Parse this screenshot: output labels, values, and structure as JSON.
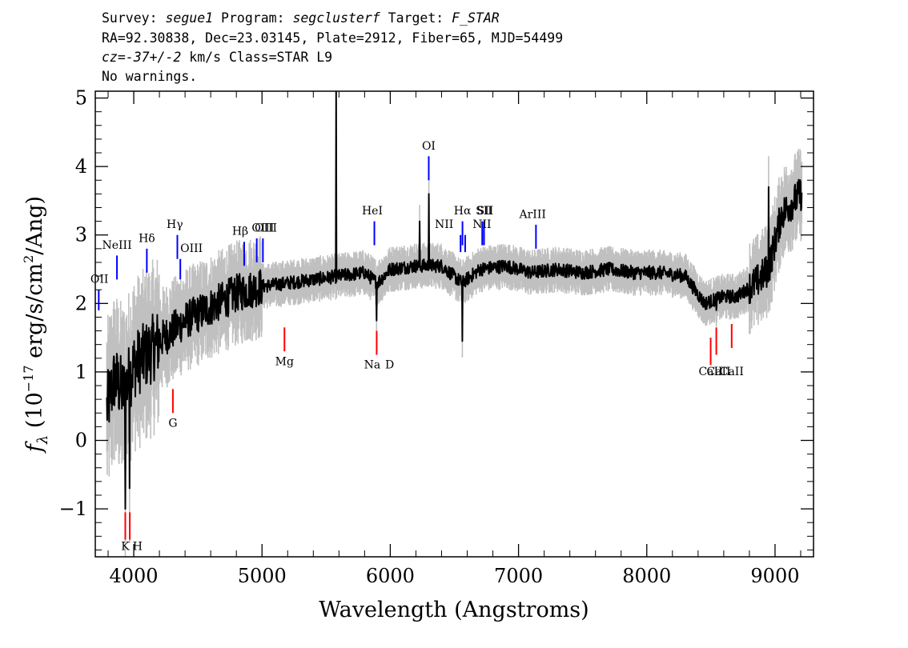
{
  "header": {
    "survey_label": "Survey: ",
    "survey_value": "segue1",
    "program_label": " Program: ",
    "program_value": "segclusterf",
    "target_label": " Target: ",
    "target_value": "F_STAR",
    "line2": "RA=92.30838, Dec=23.03145, Plate=2912, Fiber=65, MJD=54499",
    "line3_cz": "cz=-37+/-2",
    "line3_rest": " km/s Class=STAR L9",
    "line4": "No warnings."
  },
  "chart_data": {
    "type": "line",
    "title": "",
    "xlabel": "Wavelength (Angstroms)",
    "ylabel_prefix": "f",
    "ylabel_sub": "λ",
    "ylabel_open": " (10",
    "ylabel_exp": "−17",
    "ylabel_unit": " erg/s/cm",
    "ylabel_sq": "2",
    "ylabel_end": "/Ang)",
    "xlim": [
      3700,
      9300
    ],
    "ylim": [
      -1.7,
      5.1
    ],
    "xticks": [
      4000,
      5000,
      6000,
      7000,
      8000,
      9000
    ],
    "xtick_labels": [
      "4000",
      "5000",
      "6000",
      "7000",
      "8000",
      "9000"
    ],
    "yticks": [
      -1,
      0,
      1,
      2,
      3,
      4,
      5
    ],
    "ytick_labels": [
      "−1",
      "0",
      "1",
      "2",
      "3",
      "4",
      "5"
    ],
    "flux_color": "#000000",
    "error_color": "#c0c0c0",
    "spectrum_anchors": {
      "x": [
        3780,
        3850,
        3920,
        4000,
        4100,
        4200,
        4300,
        4400,
        4500,
        4600,
        4700,
        4800,
        4900,
        5000,
        5200,
        5400,
        5600,
        5800,
        5900,
        6000,
        6200,
        6400,
        6560,
        6700,
        6900,
        7100,
        7300,
        7500,
        7700,
        7900,
        8100,
        8300,
        8450,
        8600,
        8700,
        8850,
        8950,
        9050,
        9200
      ],
      "y": [
        0.4,
        0.9,
        0.7,
        1.1,
        1.25,
        1.45,
        1.6,
        1.75,
        1.85,
        1.95,
        2.05,
        2.15,
        2.2,
        2.25,
        2.3,
        2.35,
        2.4,
        2.45,
        2.3,
        2.5,
        2.55,
        2.55,
        2.3,
        2.5,
        2.55,
        2.45,
        2.5,
        2.45,
        2.5,
        2.45,
        2.45,
        2.4,
        2.0,
        2.1,
        2.1,
        2.3,
        2.5,
        3.3,
        3.6
      ]
    },
    "spikes": [
      {
        "x": 5577,
        "y": 5.1
      },
      {
        "x": 6300,
        "y": 3.6
      },
      {
        "x": 6230,
        "y": 3.2
      },
      {
        "x": 6563,
        "y": 1.45
      },
      {
        "x": 3933,
        "y": -1.0
      },
      {
        "x": 3968,
        "y": -0.7
      },
      {
        "x": 5893,
        "y": 1.75
      },
      {
        "x": 8542,
        "y": 1.9
      },
      {
        "x": 8950,
        "y": 3.7
      }
    ],
    "emission_lines": [
      {
        "label": "OII",
        "x": 3727,
        "y1": 1.9,
        "y2": 2.2,
        "lx": 3732,
        "ly": 2.3
      },
      {
        "label": "NeIII",
        "x": 3869,
        "y1": 2.35,
        "y2": 2.7,
        "lx": 3869,
        "ly": 2.8
      },
      {
        "label": "Hδ",
        "x": 4102,
        "y1": 2.45,
        "y2": 2.8,
        "lx": 4102,
        "ly": 2.9
      },
      {
        "label": "Hγ",
        "x": 4340,
        "y1": 2.65,
        "y2": 3.0,
        "lx": 4320,
        "ly": 3.1
      },
      {
        "label": "OIII",
        "x": 4363,
        "y1": 2.35,
        "y2": 2.65,
        "lx": 4450,
        "ly": 2.75
      },
      {
        "label": "Hβ",
        "x": 4861,
        "y1": 2.55,
        "y2": 2.9,
        "lx": 4830,
        "ly": 3.0
      },
      {
        "label": "OIII",
        "x": 4959,
        "y1": 2.6,
        "y2": 2.95,
        "lx": 5030,
        "ly": 3.05
      },
      {
        "label": "OIII",
        "x": 5007,
        "y1": 2.6,
        "y2": 2.95,
        "lx": 5007,
        "ly": 3.05
      },
      {
        "label": "HeI",
        "x": 5876,
        "y1": 2.85,
        "y2": 3.2,
        "lx": 5860,
        "ly": 3.3
      },
      {
        "label": "OI",
        "x": 6300,
        "y1": 3.8,
        "y2": 4.15,
        "lx": 6300,
        "ly": 4.25
      },
      {
        "label": "NII",
        "x": 6548,
        "y1": 2.75,
        "y2": 3.0,
        "lx": 6420,
        "ly": 3.1
      },
      {
        "label": "Hα",
        "x": 6563,
        "y1": 2.85,
        "y2": 3.2,
        "lx": 6563,
        "ly": 3.3
      },
      {
        "label": "NII",
        "x": 6584,
        "y1": 2.75,
        "y2": 3.0,
        "lx": 6715,
        "ly": 3.1
      },
      {
        "label": "SII",
        "x": 6717,
        "y1": 2.85,
        "y2": 3.2,
        "lx": 6740,
        "ly": 3.3
      },
      {
        "label": "SII",
        "x": 6731,
        "y1": 2.85,
        "y2": 3.2,
        "lx": 6731,
        "ly": 3.3
      },
      {
        "label": "ArIII",
        "x": 7136,
        "y1": 2.8,
        "y2": 3.15,
        "lx": 7110,
        "ly": 3.25
      }
    ],
    "absorption_lines": [
      {
        "label": "K",
        "x": 3934,
        "y1": -1.45,
        "y2": -1.05,
        "lx": 3934,
        "ly": -1.6
      },
      {
        "label": "H",
        "x": 3969,
        "y1": -1.45,
        "y2": -1.05,
        "lx": 4030,
        "ly": -1.6
      },
      {
        "label": "G",
        "x": 4305,
        "y1": 0.4,
        "y2": 0.75,
        "lx": 4305,
        "ly": 0.2
      },
      {
        "label": "Mg",
        "x": 5175,
        "y1": 1.3,
        "y2": 1.65,
        "lx": 5175,
        "ly": 1.1
      },
      {
        "label": "Na",
        "x": 5894,
        "y1": 1.25,
        "y2": 1.6,
        "lx": 5860,
        "ly": 1.05
      },
      {
        "label": "D",
        "x": 5894,
        "y1": 1.25,
        "y2": 1.25,
        "lx": 5995,
        "ly": 1.05
      },
      {
        "label": "CaII",
        "x": 8498,
        "y1": 1.1,
        "y2": 1.5,
        "lx": 8498,
        "ly": 0.95
      },
      {
        "label": "CaII",
        "x": 8542,
        "y1": 1.25,
        "y2": 1.65,
        "lx": 8560,
        "ly": 0.95
      },
      {
        "label": "CaII",
        "x": 8662,
        "y1": 1.35,
        "y2": 1.7,
        "lx": 8662,
        "ly": 0.95
      }
    ],
    "emission_color": "#0000ff",
    "absorption_color": "#ff0000"
  }
}
